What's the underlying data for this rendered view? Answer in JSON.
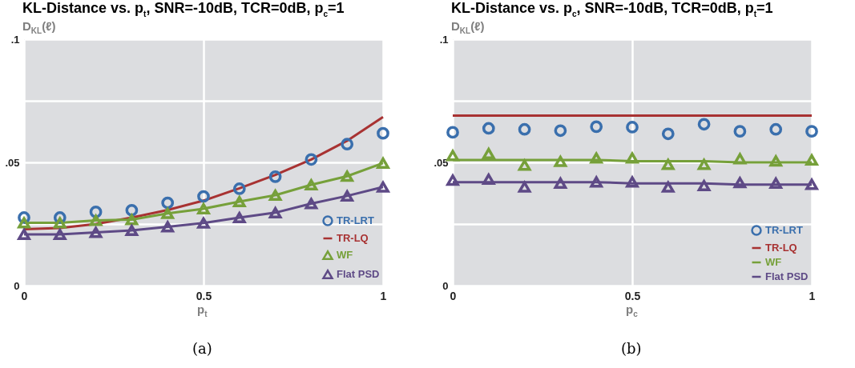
{
  "chart_data": [
    {
      "type": "line",
      "title": "KL-Distance vs. p$_{t}$, SNR=-10dB, TCR=0dB, p$_{c}$=1",
      "xlabel": "p$_{t}$",
      "ylabel": "D$_{KL}$(ℓ)",
      "annotations": [
        "(a)"
      ],
      "x": [
        0,
        0.1,
        0.2,
        0.3,
        0.4,
        0.5,
        0.6,
        0.7,
        0.8,
        0.9,
        1
      ],
      "series": [
        {
          "name": "TR-LRT",
          "type": "scatter",
          "marker": "circle",
          "color": "#3a6fad",
          "values": [
            0.0276,
            0.0276,
            0.0299,
            0.0306,
            0.0336,
            0.0362,
            0.0393,
            0.0442,
            0.0512,
            0.0574,
            0.0618
          ]
        },
        {
          "name": "TR-LQ",
          "type": "line",
          "color": "#a83232",
          "values": [
            0.0229,
            0.0234,
            0.025,
            0.0276,
            0.0307,
            0.0345,
            0.0395,
            0.0449,
            0.0512,
            0.0588,
            0.0684
          ]
        },
        {
          "name": "WF",
          "type": "line",
          "marker": "triangle",
          "color": "#76a03a",
          "values": [
            0.0255,
            0.0255,
            0.0265,
            0.0268,
            0.0293,
            0.0312,
            0.0341,
            0.0367,
            0.0409,
            0.0444,
            0.0497
          ]
        },
        {
          "name": "Flat PSD",
          "type": "line",
          "marker": "triangle",
          "color": "#5e4a86",
          "values": [
            0.0208,
            0.0208,
            0.0216,
            0.0224,
            0.0239,
            0.0254,
            0.0276,
            0.0296,
            0.0333,
            0.0364,
            0.04
          ]
        }
      ],
      "xlim": [
        0,
        1
      ],
      "xticks": [
        0,
        0.5,
        1
      ],
      "ylim": [
        0,
        0.1
      ],
      "yticks": [
        0,
        {
          "value": 0.025,
          "label": null
        },
        {
          "value": 0.05,
          "label": ".05"
        },
        {
          "value": 0.075,
          "label": null
        },
        {
          "value": 0.1,
          "label": ".1"
        }
      ],
      "grid": true,
      "legend": "bottom right"
    },
    {
      "type": "line",
      "title": "KL-Distance vs. p$_{c}$, SNR=-10dB, TCR=0dB, p$_{t}$=1",
      "xlabel": "p$_{c}$",
      "ylabel": "D$_{KL}$(ℓ)",
      "annotations": [
        "(b)"
      ],
      "x": [
        0,
        0.1,
        0.2,
        0.3,
        0.4,
        0.5,
        0.6,
        0.7,
        0.8,
        0.9,
        1
      ],
      "series": [
        {
          "name": "TR-LRT",
          "type": "scatter",
          "marker": "circle",
          "color": "#3a6fad",
          "values": [
            0.0622,
            0.0638,
            0.0634,
            0.0629,
            0.0645,
            0.0643,
            0.0616,
            0.0655,
            0.0626,
            0.0634,
            0.0626
          ]
        },
        {
          "name": "TR-LQ",
          "type": "line",
          "color": "#a83232",
          "values": [
            0.069,
            0.069,
            0.069,
            0.069,
            0.069,
            0.069,
            0.069,
            0.069,
            0.069,
            0.069,
            0.069
          ]
        },
        {
          "name": "WF",
          "type": "line",
          "color": "#76a03a",
          "values": [
            0.051,
            0.051,
            0.051,
            0.051,
            0.051,
            0.0505,
            0.0505,
            0.0505,
            0.05,
            0.05,
            0.05
          ]
        },
        {
          "type": "scatter",
          "marker": "triangle",
          "color": "#76a03a",
          "values": [
            0.0528,
            0.0536,
            0.0489,
            0.0504,
            0.0518,
            0.0518,
            0.0492,
            0.0492,
            0.0515,
            0.0506,
            0.051
          ]
        },
        {
          "name": "Flat PSD",
          "type": "line",
          "color": "#5e4a86",
          "values": [
            0.042,
            0.042,
            0.042,
            0.042,
            0.042,
            0.0415,
            0.0415,
            0.0415,
            0.041,
            0.041,
            0.041
          ]
        },
        {
          "type": "scatter",
          "marker": "triangle",
          "color": "#5e4a86",
          "values": [
            0.0428,
            0.0432,
            0.04,
            0.0416,
            0.0421,
            0.0421,
            0.04,
            0.0406,
            0.0418,
            0.0416,
            0.0411
          ]
        }
      ],
      "xlim": [
        0,
        1
      ],
      "xticks": [
        0,
        0.5,
        1
      ],
      "ylim": [
        0,
        0.1
      ],
      "yticks": [
        0,
        {
          "value": 0.025,
          "label": null
        },
        {
          "value": 0.05,
          "label": ".05"
        },
        {
          "value": 0.075,
          "label": null
        },
        {
          "value": 0.1,
          "label": ".1"
        }
      ],
      "grid": true,
      "legend": "bottom right"
    }
  ]
}
